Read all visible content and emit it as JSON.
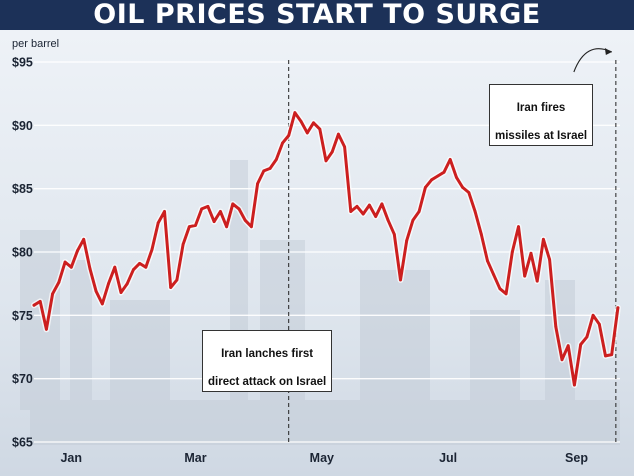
{
  "chart_data": {
    "type": "line",
    "title": "OIL PRICES START TO SURGE",
    "ylabel": "per barrel",
    "ylim": [
      65,
      95
    ],
    "y_ticks": [
      {
        "value": 95,
        "label": "$95"
      },
      {
        "value": 90,
        "label": "$90"
      },
      {
        "value": 85,
        "label": "$85"
      },
      {
        "value": 80,
        "label": "$80"
      },
      {
        "value": 75,
        "label": "$75"
      },
      {
        "value": 70,
        "label": "$70"
      },
      {
        "value": 65,
        "label": "$65"
      }
    ],
    "x_ticks": [
      {
        "date": "2024-01-16",
        "label": "Jan"
      },
      {
        "date": "2024-03-16",
        "label": "Mar"
      },
      {
        "date": "2024-05-16",
        "label": "May"
      },
      {
        "date": "2024-07-16",
        "label": "Jul"
      },
      {
        "date": "2024-09-16",
        "label": "Sep"
      }
    ],
    "xlim": [
      "2023-12-29",
      "2024-10-07"
    ],
    "grid": true,
    "line_color": "#cc1f1f",
    "series": [
      {
        "points": [
          [
            "2023-12-29",
            75.8
          ],
          [
            "2024-01-01",
            76.1
          ],
          [
            "2024-01-04",
            73.9
          ],
          [
            "2024-01-07",
            76.7
          ],
          [
            "2024-01-10",
            77.6
          ],
          [
            "2024-01-13",
            79.2
          ],
          [
            "2024-01-16",
            78.8
          ],
          [
            "2024-01-19",
            80.1
          ],
          [
            "2024-01-22",
            81.0
          ],
          [
            "2024-01-25",
            78.7
          ],
          [
            "2024-01-28",
            76.9
          ],
          [
            "2024-01-31",
            75.9
          ],
          [
            "2024-02-03",
            77.5
          ],
          [
            "2024-02-06",
            78.8
          ],
          [
            "2024-02-09",
            76.8
          ],
          [
            "2024-02-12",
            77.5
          ],
          [
            "2024-02-15",
            78.6
          ],
          [
            "2024-02-18",
            79.1
          ],
          [
            "2024-02-21",
            78.8
          ],
          [
            "2024-02-24",
            80.2
          ],
          [
            "2024-02-27",
            82.3
          ],
          [
            "2024-03-01",
            83.2
          ],
          [
            "2024-03-04",
            77.2
          ],
          [
            "2024-03-07",
            77.8
          ],
          [
            "2024-03-10",
            80.6
          ],
          [
            "2024-03-13",
            82.0
          ],
          [
            "2024-03-16",
            82.1
          ],
          [
            "2024-03-19",
            83.4
          ],
          [
            "2024-03-22",
            83.6
          ],
          [
            "2024-03-25",
            82.4
          ],
          [
            "2024-03-28",
            83.2
          ],
          [
            "2024-03-31",
            82.0
          ],
          [
            "2024-04-03",
            83.8
          ],
          [
            "2024-04-06",
            83.4
          ],
          [
            "2024-04-09",
            82.5
          ],
          [
            "2024-04-12",
            82.0
          ],
          [
            "2024-04-15",
            85.4
          ],
          [
            "2024-04-18",
            86.4
          ],
          [
            "2024-04-21",
            86.6
          ],
          [
            "2024-04-24",
            87.3
          ],
          [
            "2024-04-27",
            88.6
          ],
          [
            "2024-04-30",
            89.2
          ],
          [
            "2024-05-03",
            91.0
          ],
          [
            "2024-05-06",
            90.3
          ],
          [
            "2024-05-09",
            89.4
          ],
          [
            "2024-05-12",
            90.2
          ],
          [
            "2024-05-15",
            89.7
          ],
          [
            "2024-05-18",
            87.2
          ],
          [
            "2024-05-21",
            87.9
          ],
          [
            "2024-05-24",
            89.3
          ],
          [
            "2024-05-27",
            88.3
          ],
          [
            "2024-05-30",
            83.2
          ],
          [
            "2024-06-02",
            83.6
          ],
          [
            "2024-06-05",
            83.0
          ],
          [
            "2024-06-08",
            83.7
          ],
          [
            "2024-06-11",
            82.8
          ],
          [
            "2024-06-14",
            83.8
          ],
          [
            "2024-06-17",
            82.5
          ],
          [
            "2024-06-20",
            81.4
          ],
          [
            "2024-06-23",
            77.8
          ],
          [
            "2024-06-26",
            80.9
          ],
          [
            "2024-06-29",
            82.5
          ],
          [
            "2024-07-02",
            83.2
          ],
          [
            "2024-07-05",
            85.1
          ],
          [
            "2024-07-08",
            85.7
          ],
          [
            "2024-07-11",
            86.0
          ],
          [
            "2024-07-14",
            86.3
          ],
          [
            "2024-07-17",
            87.3
          ],
          [
            "2024-07-20",
            85.9
          ],
          [
            "2024-07-23",
            85.1
          ],
          [
            "2024-07-26",
            84.7
          ],
          [
            "2024-07-29",
            83.2
          ],
          [
            "2024-08-01",
            81.4
          ],
          [
            "2024-08-04",
            79.3
          ],
          [
            "2024-08-07",
            78.2
          ],
          [
            "2024-08-10",
            77.1
          ],
          [
            "2024-08-13",
            76.7
          ],
          [
            "2024-08-16",
            80.0
          ],
          [
            "2024-08-19",
            82.0
          ],
          [
            "2024-08-22",
            78.1
          ],
          [
            "2024-08-25",
            79.9
          ],
          [
            "2024-08-28",
            77.7
          ],
          [
            "2024-08-31",
            81.0
          ],
          [
            "2024-09-03",
            79.4
          ],
          [
            "2024-09-06",
            74.1
          ],
          [
            "2024-09-09",
            71.5
          ],
          [
            "2024-09-12",
            72.6
          ],
          [
            "2024-09-15",
            69.5
          ],
          [
            "2024-09-18",
            72.7
          ],
          [
            "2024-09-21",
            73.3
          ],
          [
            "2024-09-24",
            75.0
          ],
          [
            "2024-09-27",
            74.3
          ],
          [
            "2024-09-30",
            71.8
          ],
          [
            "2024-10-03",
            71.9
          ],
          [
            "2024-10-06",
            75.6
          ]
        ]
      }
    ],
    "annotations": [
      {
        "date": "2024-04-30",
        "lines": [
          "Iran lanches first",
          "direct attack on Israel"
        ]
      },
      {
        "date": "2024-10-05",
        "lines": [
          "Iran fires",
          "missiles at Israel"
        ]
      }
    ]
  }
}
